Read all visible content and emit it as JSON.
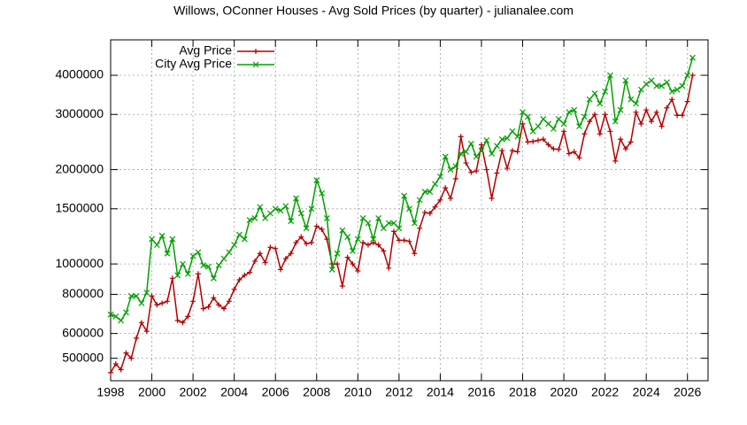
{
  "chart_data": {
    "type": "line",
    "title": "Willows, OConner Houses - Avg Sold Prices (by quarter) - julianalee.com",
    "x": [
      1998,
      1998.25,
      1998.5,
      1998.75,
      1999,
      1999.25,
      1999.5,
      1999.75,
      2000,
      2000.25,
      2000.5,
      2000.75,
      2001,
      2001.25,
      2001.5,
      2001.75,
      2002,
      2002.25,
      2002.5,
      2002.75,
      2003,
      2003.25,
      2003.5,
      2003.75,
      2004,
      2004.25,
      2004.5,
      2004.75,
      2005,
      2005.25,
      2005.5,
      2005.75,
      2006,
      2006.25,
      2006.5,
      2006.75,
      2007,
      2007.25,
      2007.5,
      2007.75,
      2008,
      2008.25,
      2008.5,
      2008.75,
      2009,
      2009.25,
      2009.5,
      2009.75,
      2010,
      2010.25,
      2010.5,
      2010.75,
      2011,
      2011.25,
      2011.5,
      2011.75,
      2012,
      2012.25,
      2012.5,
      2012.75,
      2013,
      2013.25,
      2013.5,
      2013.75,
      2014,
      2014.25,
      2014.5,
      2014.75,
      2015,
      2015.25,
      2015.5,
      2015.75,
      2016,
      2016.25,
      2016.5,
      2016.75,
      2017,
      2017.25,
      2017.5,
      2017.75,
      2018,
      2018.25,
      2018.5,
      2018.75,
      2019,
      2019.25,
      2019.5,
      2019.75,
      2020,
      2020.25,
      2020.5,
      2020.75,
      2021,
      2021.25,
      2021.5,
      2021.75,
      2022,
      2022.25,
      2022.5,
      2022.75,
      2023,
      2023.25,
      2023.5,
      2023.75,
      2024,
      2024.25,
      2024.5,
      2024.75,
      2025,
      2025.25,
      2025.5,
      2025.75,
      2026,
      2026.25
    ],
    "series": [
      {
        "name": "Avg Price",
        "color": "#b40000",
        "marker": "plus",
        "values": [
          450000,
          480000,
          460000,
          520000,
          500000,
          580000,
          650000,
          610000,
          790000,
          740000,
          750000,
          760000,
          900000,
          660000,
          650000,
          680000,
          760000,
          930000,
          720000,
          730000,
          780000,
          740000,
          720000,
          760000,
          830000,
          890000,
          920000,
          940000,
          1020000,
          1080000,
          1010000,
          1130000,
          1120000,
          960000,
          1040000,
          1080000,
          1170000,
          1220000,
          1160000,
          1170000,
          1320000,
          1290000,
          1200000,
          1000000,
          1000000,
          850000,
          1050000,
          1000000,
          950000,
          1170000,
          1150000,
          1170000,
          1150000,
          1100000,
          970000,
          1270000,
          1190000,
          1190000,
          1180000,
          1080000,
          1300000,
          1460000,
          1450000,
          1520000,
          1600000,
          1750000,
          1620000,
          1870000,
          2550000,
          2100000,
          1960000,
          1980000,
          2400000,
          2000000,
          1620000,
          1950000,
          2300000,
          2020000,
          2300000,
          2280000,
          2800000,
          2450000,
          2460000,
          2480000,
          2500000,
          2400000,
          2330000,
          2320000,
          2650000,
          2250000,
          2280000,
          2180000,
          2600000,
          2850000,
          3000000,
          2600000,
          3000000,
          2650000,
          2130000,
          2500000,
          2330000,
          2450000,
          3050000,
          2800000,
          3100000,
          2850000,
          3050000,
          2750000,
          3150000,
          3350000,
          2980000,
          2980000,
          3300000,
          4000000
        ]
      },
      {
        "name": "City Avg Price",
        "color": "#00a000",
        "marker": "cross",
        "values": [
          690000,
          680000,
          660000,
          700000,
          790000,
          790000,
          750000,
          810000,
          1200000,
          1150000,
          1230000,
          1080000,
          1200000,
          920000,
          1000000,
          930000,
          1060000,
          1090000,
          990000,
          980000,
          900000,
          990000,
          1040000,
          1090000,
          1150000,
          1240000,
          1200000,
          1380000,
          1400000,
          1520000,
          1400000,
          1450000,
          1500000,
          1480000,
          1530000,
          1370000,
          1620000,
          1450000,
          1300000,
          1500000,
          1850000,
          1680000,
          1400000,
          960000,
          1080000,
          1280000,
          1220000,
          1100000,
          1200000,
          1400000,
          1350000,
          1200000,
          1400000,
          1300000,
          1350000,
          1350000,
          1300000,
          1650000,
          1500000,
          1350000,
          1600000,
          1700000,
          1700000,
          1800000,
          1900000,
          2200000,
          2000000,
          2050000,
          2250000,
          2280000,
          2420000,
          2200000,
          2300000,
          2480000,
          2250000,
          2380000,
          2500000,
          2520000,
          2650000,
          2550000,
          3050000,
          2950000,
          2650000,
          2750000,
          2900000,
          2800000,
          2700000,
          2900000,
          2800000,
          3050000,
          3100000,
          2750000,
          2950000,
          3350000,
          3500000,
          3250000,
          3550000,
          4000000,
          2850000,
          3100000,
          3850000,
          3350000,
          3250000,
          3600000,
          3750000,
          3850000,
          3700000,
          3700000,
          3800000,
          3550000,
          3600000,
          3700000,
          4000000,
          4550000
        ]
      }
    ],
    "xlim": [
      1998,
      2027
    ],
    "xticks": [
      1998,
      2000,
      2002,
      2004,
      2006,
      2008,
      2010,
      2012,
      2014,
      2016,
      2018,
      2020,
      2022,
      2024,
      2026
    ],
    "ylim": [
      424000,
      5190000
    ],
    "yticks": [
      500000,
      600000,
      800000,
      1000000,
      1500000,
      2000000,
      3000000,
      4000000
    ],
    "log_y": true,
    "grid": true,
    "legend": "top-left"
  }
}
